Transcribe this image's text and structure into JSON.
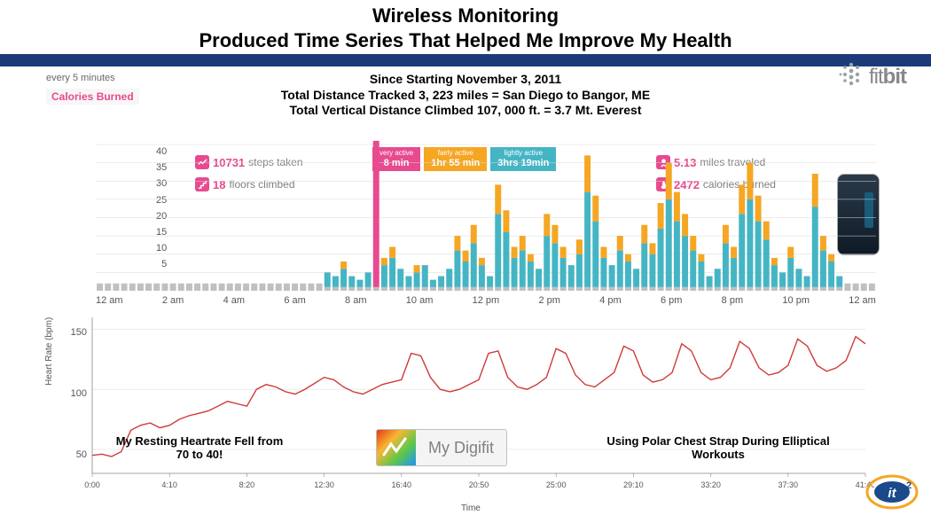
{
  "title_line1": "Wireless Monitoring",
  "title_line2": "Produced Time Series That Helped Me Improve My Health",
  "summary_line1": "Since Starting November 3, 2011",
  "summary_line2": "Total Distance Tracked 3, 223 miles = San Diego to Bangor, ME",
  "summary_line3": "Total Vertical Distance Climbed 107, 000 ft. = 3.7 Mt. Everest",
  "fitbit": {
    "word_light": "fit",
    "word_bold": "bit",
    "dot_color": "#9aa2a6"
  },
  "every5": "every 5 minutes",
  "cal_burned_label": "Calories Burned",
  "steps": {
    "num": "10731",
    "txt": "steps taken"
  },
  "floors": {
    "num": "18",
    "txt": "floors climbed"
  },
  "miles": {
    "num": "5.13",
    "txt": "miles traveled"
  },
  "cals": {
    "num": "2472",
    "txt": "calories burned"
  },
  "activity": {
    "very": {
      "label": "very active",
      "value": "8 min",
      "color": "#e84a8f"
    },
    "fairly": {
      "label": "fairly active",
      "value": "1hr 55 min",
      "color": "#f5a623"
    },
    "lightly": {
      "label": "lightly active",
      "value": "3hrs 19min",
      "color": "#45b5c4"
    }
  },
  "chart1": {
    "type": "bar",
    "ylim": [
      0,
      40
    ],
    "yticks": [
      5,
      10,
      15,
      20,
      25,
      30,
      35,
      40
    ],
    "xlabels": [
      "12 am",
      "2 am",
      "4 am",
      "6 am",
      "8 am",
      "10 am",
      "12 pm",
      "2 pm",
      "4 pm",
      "6 pm",
      "8 pm",
      "10 pm",
      "12 am"
    ],
    "grid_color": "#d9d9d9",
    "sed_color": "#c0c0c0",
    "light_color": "#45b5c4",
    "fair_color": "#f5a623",
    "very_color": "#e84a8f",
    "bars": [
      [
        2,
        0,
        0,
        0
      ],
      [
        2,
        0,
        0,
        0
      ],
      [
        2,
        0,
        0,
        0
      ],
      [
        2,
        0,
        0,
        0
      ],
      [
        2,
        0,
        0,
        0
      ],
      [
        2,
        0,
        0,
        0
      ],
      [
        2,
        0,
        0,
        0
      ],
      [
        2,
        0,
        0,
        0
      ],
      [
        2,
        0,
        0,
        0
      ],
      [
        2,
        0,
        0,
        0
      ],
      [
        2,
        0,
        0,
        0
      ],
      [
        2,
        0,
        0,
        0
      ],
      [
        2,
        0,
        0,
        0
      ],
      [
        2,
        0,
        0,
        0
      ],
      [
        2,
        0,
        0,
        0
      ],
      [
        2,
        0,
        0,
        0
      ],
      [
        2,
        0,
        0,
        0
      ],
      [
        2,
        0,
        0,
        0
      ],
      [
        2,
        0,
        0,
        0
      ],
      [
        2,
        0,
        0,
        0
      ],
      [
        2,
        0,
        0,
        0
      ],
      [
        2,
        0,
        0,
        0
      ],
      [
        2,
        0,
        0,
        0
      ],
      [
        2,
        0,
        0,
        0
      ],
      [
        2,
        0,
        0,
        0
      ],
      [
        2,
        0,
        0,
        0
      ],
      [
        2,
        0,
        0,
        0
      ],
      [
        2,
        0,
        0,
        0
      ],
      [
        1,
        4,
        0,
        0
      ],
      [
        1,
        3,
        0,
        0
      ],
      [
        1,
        5,
        2,
        0
      ],
      [
        1,
        3,
        0,
        0
      ],
      [
        1,
        2,
        0,
        0
      ],
      [
        1,
        4,
        0,
        0
      ],
      [
        1,
        0,
        0,
        40
      ],
      [
        1,
        6,
        2,
        0
      ],
      [
        1,
        8,
        3,
        0
      ],
      [
        1,
        5,
        0,
        0
      ],
      [
        1,
        3,
        0,
        0
      ],
      [
        1,
        4,
        2,
        0
      ],
      [
        1,
        6,
        0,
        0
      ],
      [
        1,
        2,
        0,
        0
      ],
      [
        1,
        3,
        0,
        0
      ],
      [
        1,
        5,
        0,
        0
      ],
      [
        1,
        10,
        4,
        0
      ],
      [
        1,
        7,
        3,
        0
      ],
      [
        1,
        12,
        5,
        0
      ],
      [
        1,
        6,
        2,
        0
      ],
      [
        1,
        3,
        0,
        0
      ],
      [
        1,
        20,
        8,
        0
      ],
      [
        1,
        15,
        6,
        0
      ],
      [
        1,
        8,
        3,
        0
      ],
      [
        1,
        10,
        4,
        0
      ],
      [
        1,
        7,
        2,
        0
      ],
      [
        1,
        5,
        0,
        0
      ],
      [
        1,
        14,
        6,
        0
      ],
      [
        1,
        12,
        5,
        0
      ],
      [
        1,
        8,
        3,
        0
      ],
      [
        1,
        6,
        0,
        0
      ],
      [
        1,
        9,
        4,
        0
      ],
      [
        1,
        26,
        10,
        0
      ],
      [
        1,
        18,
        7,
        0
      ],
      [
        1,
        8,
        3,
        0
      ],
      [
        1,
        6,
        0,
        0
      ],
      [
        1,
        10,
        4,
        0
      ],
      [
        1,
        7,
        2,
        0
      ],
      [
        1,
        5,
        0,
        0
      ],
      [
        1,
        12,
        5,
        0
      ],
      [
        1,
        9,
        3,
        0
      ],
      [
        1,
        16,
        7,
        0
      ],
      [
        1,
        24,
        10,
        0
      ],
      [
        1,
        18,
        8,
        0
      ],
      [
        1,
        14,
        6,
        0
      ],
      [
        1,
        10,
        4,
        0
      ],
      [
        1,
        7,
        2,
        0
      ],
      [
        1,
        3,
        0,
        0
      ],
      [
        1,
        5,
        0,
        0
      ],
      [
        1,
        12,
        5,
        0
      ],
      [
        1,
        8,
        3,
        0
      ],
      [
        1,
        20,
        8,
        0
      ],
      [
        1,
        24,
        10,
        0
      ],
      [
        1,
        18,
        7,
        0
      ],
      [
        1,
        13,
        5,
        0
      ],
      [
        1,
        6,
        2,
        0
      ],
      [
        1,
        4,
        0,
        0
      ],
      [
        1,
        8,
        3,
        0
      ],
      [
        1,
        5,
        0,
        0
      ],
      [
        1,
        3,
        0,
        0
      ],
      [
        1,
        22,
        9,
        0
      ],
      [
        1,
        10,
        4,
        0
      ],
      [
        1,
        7,
        2,
        0
      ],
      [
        1,
        3,
        0,
        0
      ],
      [
        2,
        0,
        0,
        0
      ],
      [
        2,
        0,
        0,
        0
      ],
      [
        2,
        0,
        0,
        0
      ],
      [
        2,
        0,
        0,
        0
      ]
    ]
  },
  "chart2": {
    "type": "line",
    "ylabel": "Heart Rate (bpm)",
    "xlabel": "Time",
    "yticks": [
      50,
      100,
      150
    ],
    "ylim": [
      30,
      160
    ],
    "xlabels": [
      "0:00",
      "4:10",
      "8:20",
      "12:30",
      "16:40",
      "20:50",
      "25:00",
      "29:10",
      "33:20",
      "37:30",
      "41:40"
    ],
    "line_color": "#d03a3a",
    "grid_color": "#e0e0e0",
    "values": [
      45,
      46,
      44,
      48,
      66,
      70,
      72,
      68,
      70,
      75,
      78,
      80,
      82,
      86,
      90,
      88,
      86,
      100,
      104,
      102,
      98,
      96,
      100,
      105,
      110,
      108,
      102,
      98,
      96,
      100,
      104,
      106,
      108,
      130,
      128,
      110,
      100,
      98,
      100,
      104,
      108,
      130,
      132,
      110,
      102,
      100,
      104,
      110,
      134,
      130,
      112,
      104,
      102,
      108,
      114,
      136,
      132,
      112,
      106,
      108,
      114,
      138,
      132,
      114,
      108,
      110,
      118,
      140,
      134,
      118,
      112,
      114,
      120,
      142,
      136,
      120,
      115,
      118,
      124,
      144,
      138
    ]
  },
  "note_left": "My Resting Heartrate Fell from 70 to 40!",
  "note_right": "Using Polar Chest Strap During Elliptical Workouts",
  "digifit_label": "My Digifit"
}
